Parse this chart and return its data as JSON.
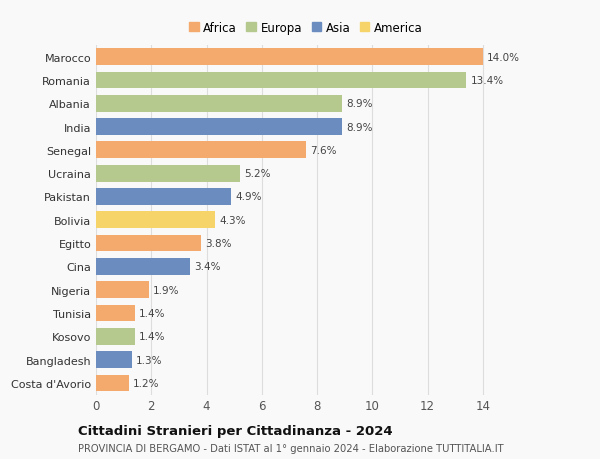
{
  "countries": [
    "Marocco",
    "Romania",
    "Albania",
    "India",
    "Senegal",
    "Ucraina",
    "Pakistan",
    "Bolivia",
    "Egitto",
    "Cina",
    "Nigeria",
    "Tunisia",
    "Kosovo",
    "Bangladesh",
    "Costa d'Avorio"
  ],
  "values": [
    14.0,
    13.4,
    8.9,
    8.9,
    7.6,
    5.2,
    4.9,
    4.3,
    3.8,
    3.4,
    1.9,
    1.4,
    1.4,
    1.3,
    1.2
  ],
  "continents": [
    "Africa",
    "Europa",
    "Europa",
    "Asia",
    "Africa",
    "Europa",
    "Asia",
    "America",
    "Africa",
    "Asia",
    "Africa",
    "Africa",
    "Europa",
    "Asia",
    "Africa"
  ],
  "colors": {
    "Africa": "#F4A96D",
    "Europa": "#B5C98E",
    "Asia": "#6B8CBF",
    "America": "#F7D46A"
  },
  "legend_order": [
    "Africa",
    "Europa",
    "Asia",
    "America"
  ],
  "legend_colors": [
    "#F4A96D",
    "#B5C98E",
    "#6B8CBF",
    "#F7D46A"
  ],
  "xlim": [
    0,
    15.2
  ],
  "xticks": [
    0,
    2,
    4,
    6,
    8,
    10,
    12,
    14
  ],
  "title": "Cittadini Stranieri per Cittadinanza - 2024",
  "subtitle": "PROVINCIA DI BERGAMO - Dati ISTAT al 1° gennaio 2024 - Elaborazione TUTTITALIA.IT",
  "background_color": "#f9f9f9",
  "bar_height": 0.72,
  "grid_color": "#dddddd"
}
